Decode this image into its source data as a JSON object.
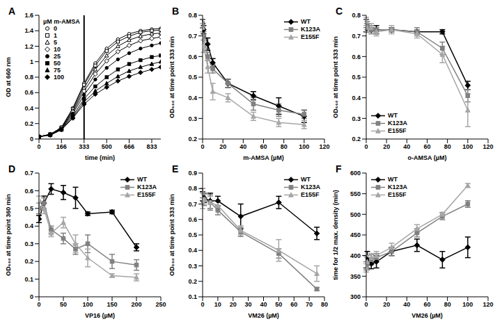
{
  "chart_data": [
    {
      "type": "line",
      "title": "A",
      "x_label": "time (min)",
      "y_label": "OD at 660 nm",
      "legend_title": "µM m-AMSA",
      "legend": "upper left",
      "grid": false,
      "x": [
        0,
        83,
        166,
        250,
        333,
        416,
        500,
        583,
        666,
        750,
        833,
        900
      ],
      "xlim": [
        0,
        900
      ],
      "xticks": [
        0,
        166,
        333,
        500,
        666,
        833
      ],
      "ylim": [
        0,
        1.6
      ],
      "yticks": [
        0,
        0.2,
        0.4,
        0.6,
        0.8,
        1,
        1.2,
        1.4,
        1.6
      ],
      "reference_x": 333,
      "series": [
        {
          "name": "0",
          "color": "#000000",
          "marker": "circle_open",
          "values": [
            0.03,
            0.06,
            0.15,
            0.4,
            0.72,
            0.98,
            1.17,
            1.29,
            1.36,
            1.4,
            1.42,
            1.43
          ]
        },
        {
          "name": "1",
          "color": "#000000",
          "marker": "square_open",
          "values": [
            0.03,
            0.06,
            0.15,
            0.39,
            0.7,
            0.95,
            1.14,
            1.26,
            1.33,
            1.38,
            1.4,
            1.41
          ]
        },
        {
          "name": "5",
          "color": "#000000",
          "marker": "triangle_open",
          "values": [
            0.03,
            0.06,
            0.14,
            0.37,
            0.66,
            0.9,
            1.08,
            1.2,
            1.28,
            1.33,
            1.36,
            1.37
          ]
        },
        {
          "name": "10",
          "color": "#000000",
          "marker": "diamond_open",
          "values": [
            0.03,
            0.06,
            0.14,
            0.35,
            0.62,
            0.84,
            1.01,
            1.13,
            1.21,
            1.27,
            1.3,
            1.32
          ]
        },
        {
          "name": "25",
          "color": "#000000",
          "marker": "circle",
          "values": [
            0.03,
            0.06,
            0.13,
            0.33,
            0.57,
            0.77,
            0.92,
            1.03,
            1.11,
            1.17,
            1.21,
            1.24
          ]
        },
        {
          "name": "50",
          "color": "#000000",
          "marker": "square",
          "values": [
            0.03,
            0.06,
            0.13,
            0.3,
            0.52,
            0.68,
            0.8,
            0.9,
            0.97,
            1.02,
            1.06,
            1.08
          ]
        },
        {
          "name": "75",
          "color": "#000000",
          "marker": "triangle",
          "values": [
            0.03,
            0.05,
            0.12,
            0.28,
            0.48,
            0.62,
            0.72,
            0.81,
            0.88,
            0.93,
            0.97,
            1.0
          ]
        },
        {
          "name": "100",
          "color": "#000000",
          "marker": "diamond",
          "values": [
            0.03,
            0.05,
            0.12,
            0.27,
            0.45,
            0.58,
            0.67,
            0.75,
            0.81,
            0.86,
            0.9,
            0.93
          ]
        }
      ]
    },
    {
      "type": "line",
      "title": "B",
      "x_label": "m-AMSA (µM)",
      "y_label": "OD₆₆₀ at time point 333 min",
      "legend": "upper right",
      "grid": false,
      "x": [
        0,
        1,
        5,
        10,
        25,
        50,
        75,
        100
      ],
      "xlim": [
        0,
        120
      ],
      "xticks": [
        0,
        20,
        40,
        60,
        80,
        100,
        120
      ],
      "ylim": [
        0.2,
        0.8
      ],
      "yticks": [
        0.2,
        0.3,
        0.4,
        0.5,
        0.6,
        0.7,
        0.8
      ],
      "series": [
        {
          "name": "WT",
          "color": "#000000",
          "marker": "diamond",
          "values": [
            0.76,
            0.73,
            0.66,
            0.57,
            0.47,
            0.41,
            0.36,
            0.31
          ],
          "errors": [
            0.02,
            0.02,
            0.03,
            0.02,
            0.02,
            0.02,
            0.04,
            0.03
          ]
        },
        {
          "name": "K123A",
          "color": "#808080",
          "marker": "square",
          "values": [
            0.76,
            0.7,
            0.6,
            0.54,
            0.47,
            0.37,
            0.34,
            0.32
          ],
          "errors": [
            0.02,
            0.02,
            0.02,
            0.02,
            0.02,
            0.03,
            0.03,
            0.02
          ]
        },
        {
          "name": "E155F",
          "color": "#a6a6a6",
          "marker": "triangle",
          "values": [
            0.74,
            0.65,
            0.55,
            0.43,
            0.4,
            0.31,
            0.28,
            0.27
          ],
          "errors": [
            0.02,
            0.03,
            0.03,
            0.04,
            0.02,
            0.02,
            0.02,
            0.02
          ]
        }
      ]
    },
    {
      "type": "line",
      "title": "C",
      "x_label": "o-AMSA (µM)",
      "y_label": "OD₆₆₀ at time point 333 min",
      "legend": "lower left",
      "grid": false,
      "x": [
        0,
        1,
        5,
        10,
        25,
        50,
        75,
        100
      ],
      "xlim": [
        0,
        120
      ],
      "xticks": [
        0,
        20,
        40,
        60,
        80,
        100,
        120
      ],
      "ylim": [
        0.2,
        0.8
      ],
      "yticks": [
        0.2,
        0.3,
        0.4,
        0.5,
        0.6,
        0.7,
        0.8
      ],
      "series": [
        {
          "name": "WT",
          "color": "#000000",
          "marker": "diamond",
          "values": [
            0.75,
            0.74,
            0.73,
            0.73,
            0.73,
            0.72,
            0.72,
            0.46
          ],
          "errors": [
            0.03,
            0.02,
            0.01,
            0.02,
            0.01,
            0.01,
            0.01,
            0.02
          ]
        },
        {
          "name": "K123A",
          "color": "#808080",
          "marker": "square",
          "values": [
            0.76,
            0.75,
            0.73,
            0.73,
            0.73,
            0.72,
            0.64,
            0.41
          ],
          "errors": [
            0.02,
            0.02,
            0.02,
            0.01,
            0.01,
            0.02,
            0.03,
            0.03
          ]
        },
        {
          "name": "E155F",
          "color": "#a6a6a6",
          "marker": "triangle",
          "values": [
            0.77,
            0.74,
            0.74,
            0.72,
            0.73,
            0.71,
            0.61,
            0.34
          ],
          "errors": [
            0.02,
            0.02,
            0.02,
            0.02,
            0.02,
            0.02,
            0.04,
            0.08
          ]
        }
      ]
    },
    {
      "type": "line",
      "title": "D",
      "x_label": "VP16 (µM)",
      "y_label": "OD₆₆₀ at time point 360 min",
      "legend": "upper right",
      "grid": false,
      "x": [
        0,
        10,
        25,
        50,
        75,
        100,
        150,
        200
      ],
      "xlim": [
        0,
        250
      ],
      "xticks": [
        0,
        50,
        100,
        150,
        200,
        250
      ],
      "ylim": [
        0,
        0.7
      ],
      "yticks": [
        0,
        0.1,
        0.2,
        0.3,
        0.4,
        0.5,
        0.6,
        0.7
      ],
      "series": [
        {
          "name": "WT",
          "color": "#000000",
          "marker": "diamond",
          "values": [
            0.44,
            0.53,
            0.61,
            0.59,
            0.56,
            0.47,
            0.48,
            0.28
          ],
          "errors": [
            0.02,
            0.04,
            0.03,
            0.04,
            0.06,
            0.01,
            0.01,
            0.02
          ]
        },
        {
          "name": "K123A",
          "color": "#808080",
          "marker": "square",
          "values": [
            0.5,
            0.53,
            0.38,
            0.33,
            0.27,
            0.3,
            0.2,
            0.18
          ],
          "errors": [
            0.03,
            0.03,
            0.02,
            0.03,
            0.03,
            0.05,
            0.04,
            0.03
          ]
        },
        {
          "name": "E155F",
          "color": "#a6a6a6",
          "marker": "triangle",
          "values": [
            0.55,
            0.5,
            0.36,
            0.42,
            0.3,
            0.22,
            0.12,
            0.11
          ],
          "errors": [
            0.02,
            0.03,
            0.02,
            0.03,
            0.05,
            0.05,
            0.01,
            0.02
          ]
        }
      ]
    },
    {
      "type": "line",
      "title": "E",
      "x_label": "VM26 (µM)",
      "y_label": "OD₆₆₀ at time point 333 min",
      "legend": "upper right",
      "grid": false,
      "x": [
        0,
        1,
        5,
        10,
        25,
        50,
        75
      ],
      "xlim": [
        0,
        80
      ],
      "xticks": [
        0,
        10,
        20,
        30,
        40,
        50,
        60,
        70,
        80
      ],
      "ylim": [
        0.1,
        0.9
      ],
      "yticks": [
        0.1,
        0.2,
        0.3,
        0.4,
        0.5,
        0.6,
        0.7,
        0.8,
        0.9
      ],
      "series": [
        {
          "name": "WT",
          "color": "#000000",
          "marker": "diamond",
          "values": [
            0.75,
            0.74,
            0.72,
            0.72,
            0.62,
            0.71,
            0.51
          ],
          "errors": [
            0.03,
            0.03,
            0.05,
            0.03,
            0.08,
            0.04,
            0.04
          ]
        },
        {
          "name": "K123A",
          "color": "#808080",
          "marker": "square",
          "values": [
            0.77,
            0.73,
            0.71,
            0.66,
            0.52,
            0.38,
            0.15
          ],
          "errors": [
            0.03,
            0.04,
            0.05,
            0.03,
            0.03,
            0.03,
            0.01
          ]
        },
        {
          "name": "E155F",
          "color": "#a6a6a6",
          "marker": "triangle",
          "values": [
            0.72,
            0.73,
            0.71,
            0.69,
            0.53,
            0.4,
            0.25
          ],
          "errors": [
            0.05,
            0.03,
            0.04,
            0.03,
            0.03,
            0.07,
            0.05
          ]
        }
      ]
    },
    {
      "type": "line",
      "title": "F",
      "x_label": "VM26 (µM)",
      "y_label": "time for 1/2 max. density (min)",
      "legend": "upper left",
      "grid": false,
      "x": [
        0,
        1,
        5,
        10,
        25,
        50,
        75,
        100
      ],
      "xlim": [
        0,
        120
      ],
      "xticks": [
        0,
        20,
        40,
        60,
        80,
        100,
        120
      ],
      "ylim": [
        300,
        600
      ],
      "yticks": [
        300,
        350,
        400,
        450,
        500,
        550,
        600
      ],
      "series": [
        {
          "name": "WT",
          "color": "#000000",
          "marker": "diamond",
          "values": [
            385,
            390,
            380,
            385,
            410,
            425,
            390,
            420
          ],
          "errors": [
            15,
            20,
            12,
            15,
            10,
            15,
            20,
            25
          ]
        },
        {
          "name": "K123A",
          "color": "#808080",
          "marker": "square",
          "values": [
            375,
            380,
            390,
            395,
            410,
            455,
            495,
            525
          ],
          "errors": [
            10,
            15,
            12,
            10,
            10,
            10,
            8,
            8
          ]
        },
        {
          "name": "E155F",
          "color": "#a6a6a6",
          "marker": "triangle",
          "values": [
            370,
            385,
            395,
            400,
            420,
            465,
            500,
            570
          ],
          "errors": [
            10,
            15,
            10,
            10,
            10,
            10,
            5,
            5
          ]
        }
      ]
    }
  ]
}
